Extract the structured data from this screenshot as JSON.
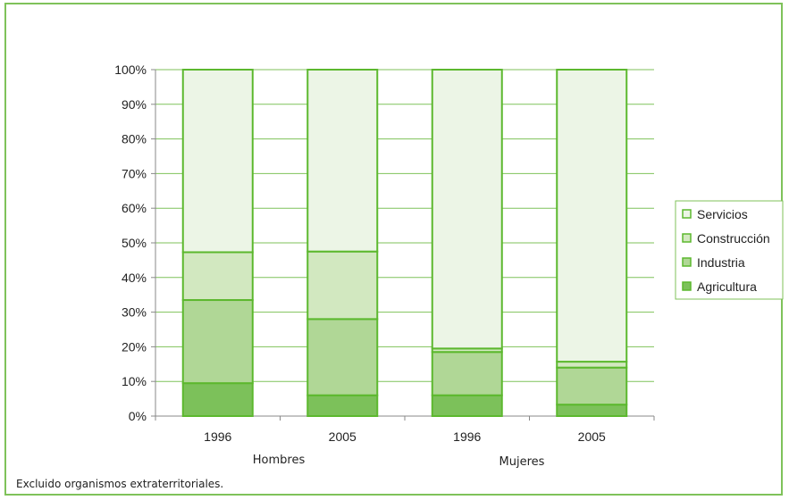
{
  "chart_data": {
    "type": "stacked_bar_100",
    "y_ticks": [
      "0%",
      "10%",
      "20%",
      "30%",
      "40%",
      "50%",
      "60%",
      "70%",
      "80%",
      "90%",
      "100%"
    ],
    "ylim": [
      0,
      100
    ],
    "grid": true,
    "legend_position": "right",
    "groups": [
      {
        "label": "Hombres",
        "categories": [
          "1996",
          "2005"
        ]
      },
      {
        "label": "Mujeres",
        "categories": [
          "1996",
          "2005"
        ]
      }
    ],
    "categories": [
      "1996",
      "2005",
      "1996",
      "2005"
    ],
    "series": [
      {
        "name": "Agricultura",
        "color": "#7cc15a",
        "values": [
          9.5,
          6.0,
          6.0,
          3.3
        ]
      },
      {
        "name": "Industria",
        "color": "#b0d796",
        "values": [
          24.0,
          22.0,
          12.5,
          10.7
        ]
      },
      {
        "name": "Construcción",
        "color": "#d2e8c0",
        "values": [
          13.8,
          19.5,
          1.0,
          1.7
        ]
      },
      {
        "name": "Servicios",
        "color": "#ecf5e6",
        "values": [
          52.7,
          52.5,
          80.5,
          84.3
        ]
      }
    ],
    "legend_order": [
      "Servicios",
      "Construcción",
      "Industria",
      "Agricultura"
    ],
    "edge_color": "#5cb82e"
  },
  "footnote": "Excluido organismos extraterritoriales."
}
